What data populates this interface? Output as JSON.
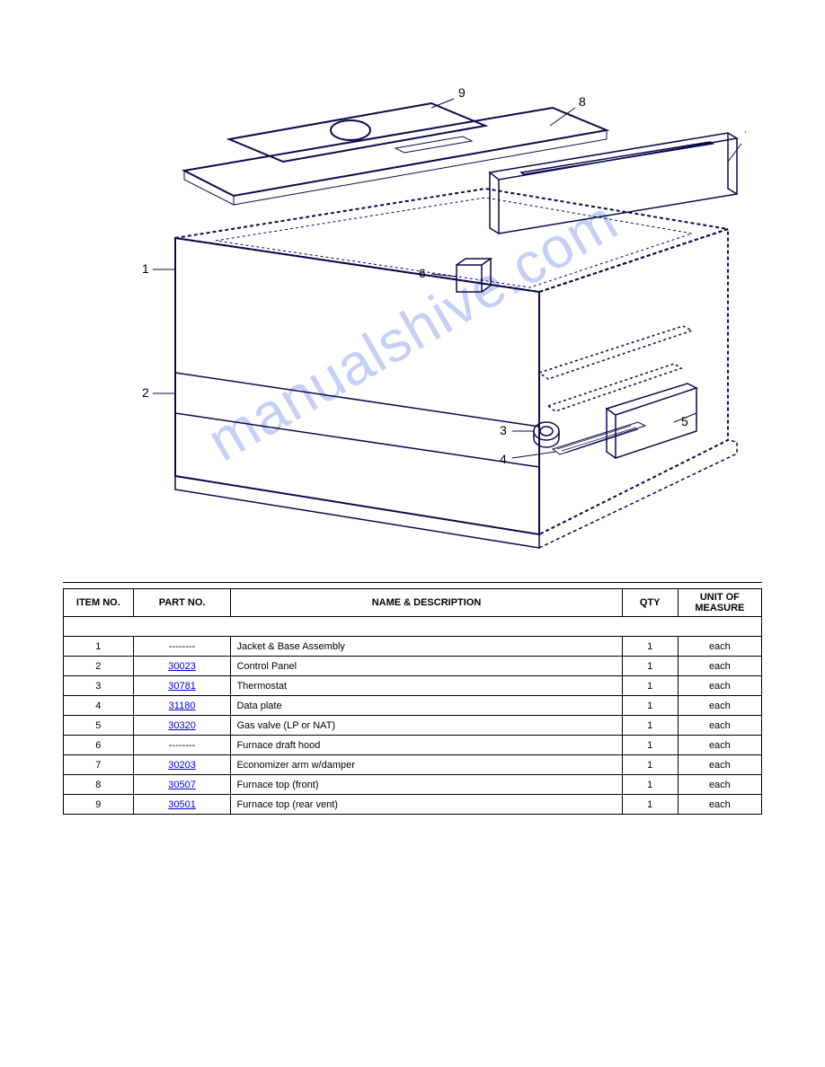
{
  "watermark": {
    "text": "manualshive.com",
    "color": "rgba(90,120,230,0.35)",
    "fontsize": 64,
    "rotate_deg": -30
  },
  "diagram": {
    "type": "technical-line-drawing",
    "stroke_color": "#0a0a4a",
    "stroke_width_thin": 1,
    "stroke_width_thick": 2,
    "callouts": [
      {
        "id": "1",
        "text": "1"
      },
      {
        "id": "2",
        "text": "2"
      },
      {
        "id": "3",
        "text": "3"
      },
      {
        "id": "4",
        "text": "4"
      },
      {
        "id": "5",
        "text": "5"
      },
      {
        "id": "6",
        "text": "6"
      },
      {
        "id": "7",
        "text": "7"
      },
      {
        "id": "8",
        "text": "8"
      },
      {
        "id": "9",
        "text": "9"
      }
    ]
  },
  "parts_table": {
    "columns": [
      "ITEM NO.",
      "PART NO.",
      "NAME & DESCRIPTION",
      "QTY",
      "UNIT OF MEASURE"
    ],
    "header_fontsize": 11,
    "cell_fontsize": 11,
    "border_color": "#000000",
    "link_color": "#0000ee",
    "rows": [
      {
        "item": "1",
        "part": "--------",
        "part_is_link": false,
        "desc": "Jacket & Base Assembly",
        "qty": "1",
        "um": "each"
      },
      {
        "item": "2",
        "part": "30023",
        "part_is_link": true,
        "desc": "Control Panel",
        "qty": "1",
        "um": "each"
      },
      {
        "item": "3",
        "part": "30781",
        "part_is_link": true,
        "desc": "Thermostat",
        "qty": "1",
        "um": "each"
      },
      {
        "item": "4",
        "part": "31180",
        "part_is_link": true,
        "desc": "Data plate",
        "qty": "1",
        "um": "each"
      },
      {
        "item": "5",
        "part": "30320",
        "part_is_link": true,
        "desc": "Gas valve (LP or NAT)",
        "qty": "1",
        "um": "each"
      },
      {
        "item": "6",
        "part": "--------",
        "part_is_link": false,
        "desc": "Furnace draft hood",
        "qty": "1",
        "um": "each"
      },
      {
        "item": "7",
        "part": "30203",
        "part_is_link": true,
        "desc": "Economizer arm w/damper",
        "qty": "1",
        "um": "each"
      },
      {
        "item": "8",
        "part": "30507",
        "part_is_link": true,
        "desc": "Furnace top (front)",
        "qty": "1",
        "um": "each"
      },
      {
        "item": "9",
        "part": "30501",
        "part_is_link": true,
        "desc": "Furnace top (rear vent)",
        "qty": "1",
        "um": "each"
      }
    ]
  }
}
